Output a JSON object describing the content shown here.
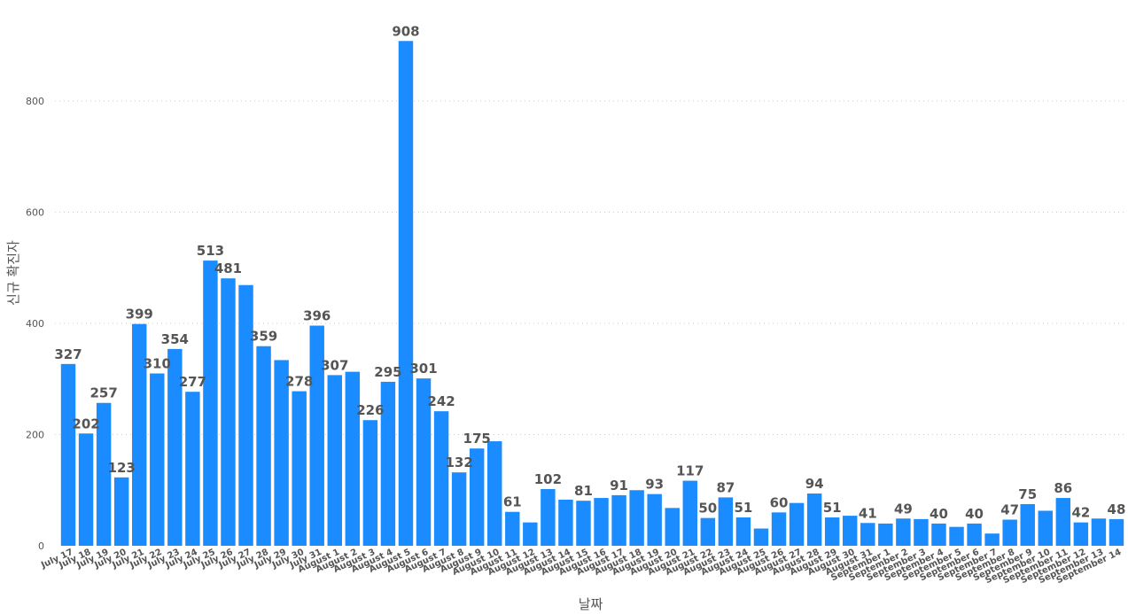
{
  "chart_data": {
    "type": "bar",
    "title": "",
    "xlabel": "날짜",
    "ylabel": "신규 확진자",
    "ylim": [
      0,
      920
    ],
    "yticks": [
      0,
      200,
      400,
      600,
      800
    ],
    "grid": true,
    "bar_color": "#1a8cff",
    "label_color": "#555555",
    "tick_color": "#555555",
    "grid_color": "#cccccc",
    "categories": [
      "July 17",
      "July 18",
      "July 19",
      "July 20",
      "July 21",
      "July 22",
      "July 23",
      "July 24",
      "July 25",
      "July 26",
      "July 27",
      "July 28",
      "July 29",
      "July 30",
      "July 31",
      "August 1",
      "August 2",
      "August 3",
      "August 4",
      "August 5",
      "August 6",
      "August 7",
      "August 8",
      "August 9",
      "August 10",
      "August 11",
      "August 12",
      "August 13",
      "August 14",
      "August 15",
      "August 16",
      "August 17",
      "August 18",
      "August 19",
      "August 20",
      "August 21",
      "August 22",
      "August 23",
      "August 24",
      "August 25",
      "August 26",
      "August 27",
      "August 28",
      "August 29",
      "August 30",
      "August 31",
      "September 1",
      "September 2",
      "September 3",
      "September 4",
      "September 5",
      "September 6",
      "September 7",
      "September 8",
      "September 9",
      "September 10",
      "September 11",
      "September 12",
      "September 13",
      "September 14"
    ],
    "values": [
      327,
      202,
      257,
      123,
      399,
      310,
      354,
      277,
      513,
      481,
      469,
      359,
      334,
      278,
      396,
      307,
      313,
      226,
      295,
      908,
      301,
      242,
      132,
      175,
      188,
      61,
      42,
      102,
      83,
      81,
      86,
      91,
      100,
      93,
      68,
      117,
      50,
      87,
      51,
      31,
      60,
      77,
      94,
      51,
      54,
      41,
      40,
      49,
      48,
      40,
      34,
      40,
      22,
      47,
      75,
      63,
      86,
      42,
      49,
      48
    ],
    "data_labels": [
      "327",
      "202",
      "257",
      "123",
      "399",
      "310",
      "354",
      "277",
      "513",
      "481",
      "",
      "359",
      "",
      "278",
      "396",
      "307",
      "",
      "226",
      "295",
      "908",
      "301",
      "242",
      "132",
      "175",
      "",
      "61",
      "",
      "102",
      "",
      "81",
      "",
      "91",
      "",
      "93",
      "",
      "117",
      "50",
      "87",
      "51",
      "",
      "60",
      "",
      "94",
      "51",
      "",
      "41",
      "",
      "49",
      "",
      "40",
      "",
      "40",
      "",
      "47",
      "75",
      "",
      "86",
      "42",
      "",
      "48"
    ]
  }
}
